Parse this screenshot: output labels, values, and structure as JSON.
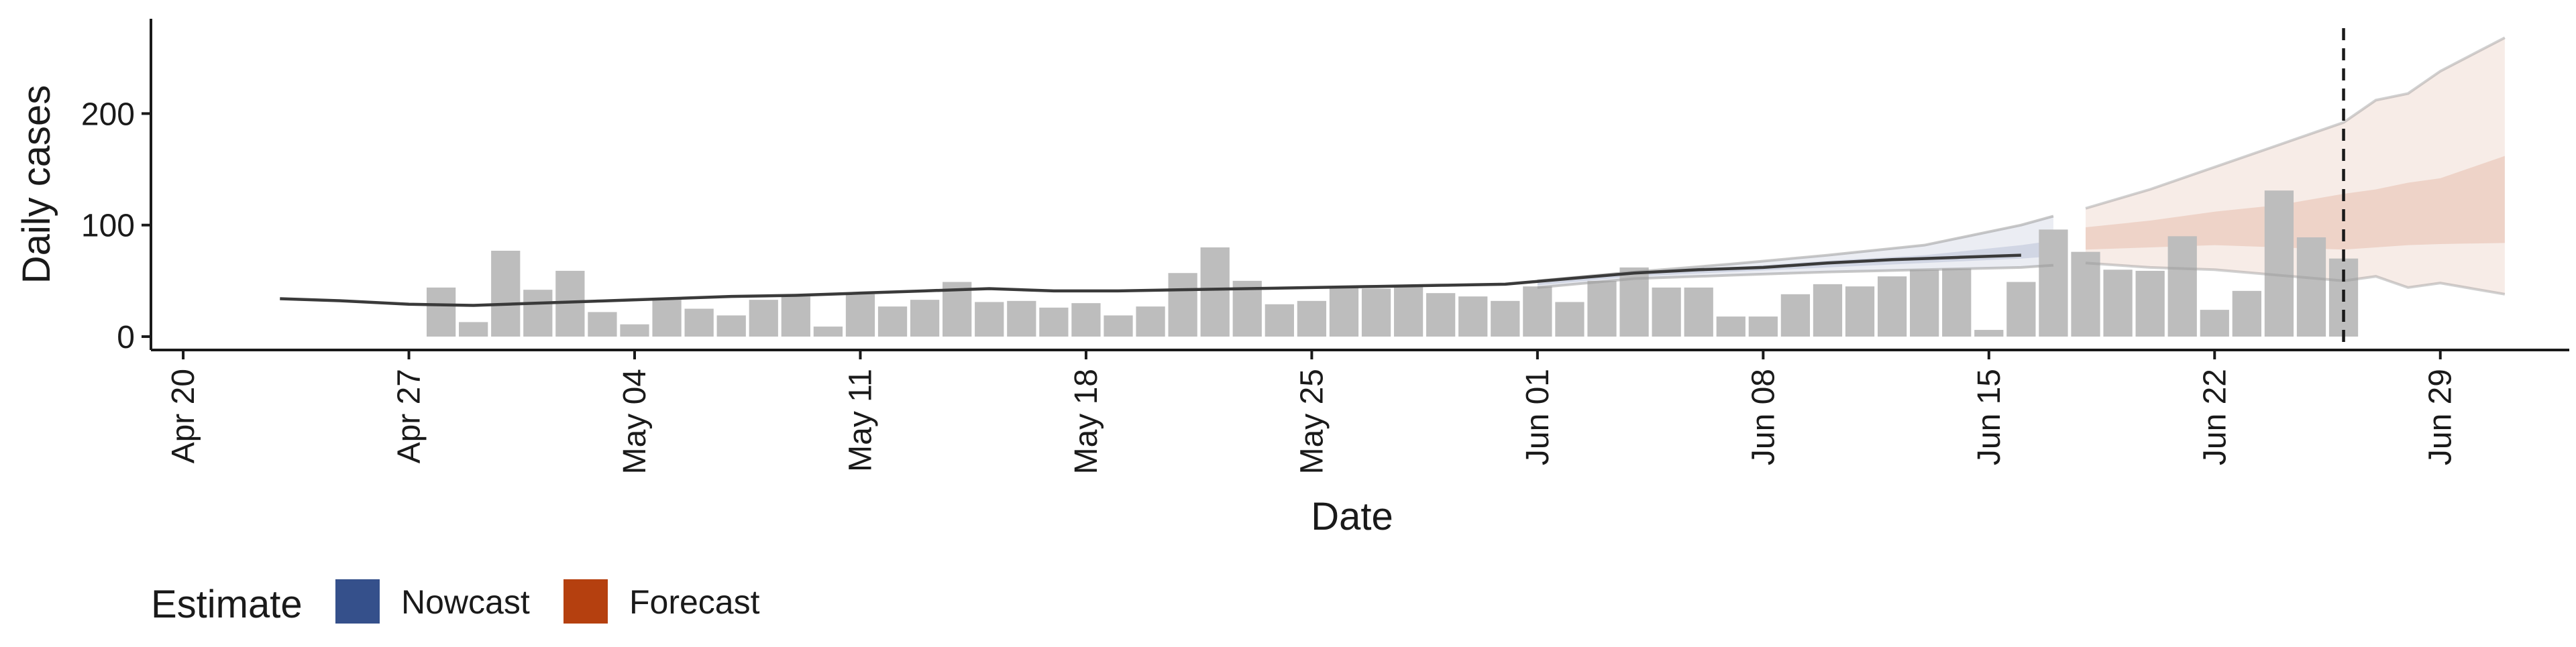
{
  "chart_data": {
    "type": "bar",
    "xlabel": "Date",
    "ylabel": "Daily cases",
    "x_range": [
      "2020-04-19",
      "2020-07-03"
    ],
    "ylim": [
      -12,
      285
    ],
    "x_ticks": [
      {
        "date": "2020-04-20",
        "label": "Apr 20"
      },
      {
        "date": "2020-04-27",
        "label": "Apr 27"
      },
      {
        "date": "2020-05-04",
        "label": "May 04"
      },
      {
        "date": "2020-05-11",
        "label": "May 11"
      },
      {
        "date": "2020-05-18",
        "label": "May 18"
      },
      {
        "date": "2020-05-25",
        "label": "May 25"
      },
      {
        "date": "2020-06-01",
        "label": "Jun 01"
      },
      {
        "date": "2020-06-08",
        "label": "Jun 08"
      },
      {
        "date": "2020-06-15",
        "label": "Jun 15"
      },
      {
        "date": "2020-06-22",
        "label": "Jun 22"
      },
      {
        "date": "2020-06-29",
        "label": "Jun 29"
      }
    ],
    "y_ticks": [
      0,
      100,
      200
    ],
    "grid": false,
    "bars": {
      "color": "#bdbdbd",
      "dates": [
        "2020-04-28",
        "2020-04-29",
        "2020-04-30",
        "2020-05-01",
        "2020-05-02",
        "2020-05-03",
        "2020-05-04",
        "2020-05-05",
        "2020-05-06",
        "2020-05-07",
        "2020-05-08",
        "2020-05-09",
        "2020-05-10",
        "2020-05-11",
        "2020-05-12",
        "2020-05-13",
        "2020-05-14",
        "2020-05-15",
        "2020-05-16",
        "2020-05-17",
        "2020-05-18",
        "2020-05-19",
        "2020-05-20",
        "2020-05-21",
        "2020-05-22",
        "2020-05-23",
        "2020-05-24",
        "2020-05-25",
        "2020-05-26",
        "2020-05-27",
        "2020-05-28",
        "2020-05-29",
        "2020-05-30",
        "2020-05-31",
        "2020-06-01",
        "2020-06-02",
        "2020-06-03",
        "2020-06-04",
        "2020-06-05",
        "2020-06-06",
        "2020-06-07",
        "2020-06-08",
        "2020-06-09",
        "2020-06-10",
        "2020-06-11",
        "2020-06-12",
        "2020-06-13",
        "2020-06-14",
        "2020-06-15",
        "2020-06-16",
        "2020-06-17",
        "2020-06-18",
        "2020-06-19",
        "2020-06-20",
        "2020-06-21",
        "2020-06-22",
        "2020-06-23",
        "2020-06-24",
        "2020-06-25",
        "2020-06-26"
      ],
      "values": [
        44,
        13,
        77,
        42,
        59,
        22,
        11,
        33,
        25,
        19,
        33,
        36,
        9,
        38,
        27,
        33,
        49,
        31,
        32,
        26,
        30,
        19,
        27,
        57,
        80,
        50,
        29,
        32,
        44,
        43,
        45,
        39,
        36,
        32,
        45,
        31,
        50,
        62,
        44,
        44,
        18,
        18,
        38,
        47,
        45,
        54,
        60,
        61,
        6,
        49,
        96,
        76,
        60,
        59,
        90,
        24,
        41,
        131,
        89,
        70
      ]
    },
    "estimate_line": {
      "color": "#3a3a3a",
      "dates": [
        "2020-04-23",
        "2020-04-25",
        "2020-04-27",
        "2020-04-29",
        "2020-05-01",
        "2020-05-03",
        "2020-05-05",
        "2020-05-07",
        "2020-05-09",
        "2020-05-11",
        "2020-05-13",
        "2020-05-15",
        "2020-05-17",
        "2020-05-19",
        "2020-05-21",
        "2020-05-23",
        "2020-05-25",
        "2020-05-27",
        "2020-05-29",
        "2020-05-31",
        "2020-06-02",
        "2020-06-04",
        "2020-06-06",
        "2020-06-08",
        "2020-06-10",
        "2020-06-12",
        "2020-06-14",
        "2020-06-16"
      ],
      "values": [
        34,
        32,
        29,
        28,
        30,
        32,
        34,
        36,
        37,
        39,
        41,
        43,
        41,
        41,
        42,
        43,
        44,
        45,
        46,
        47,
        52,
        57,
        60,
        62,
        66,
        69,
        71,
        73
      ]
    },
    "nowcast_band": {
      "color": "#3c4f8c",
      "dates": [
        "2020-06-01",
        "2020-06-04",
        "2020-06-07",
        "2020-06-10",
        "2020-06-13",
        "2020-06-16",
        "2020-06-17"
      ],
      "outer_upper": [
        50,
        58,
        65,
        73,
        82,
        100,
        108
      ],
      "outer_lower": [
        44,
        52,
        55,
        58,
        60,
        62,
        64
      ],
      "inner_upper": [
        48,
        56,
        62,
        68,
        73,
        82,
        86
      ],
      "inner_lower": [
        46,
        54,
        58,
        62,
        66,
        70,
        72
      ]
    },
    "forecast_band": {
      "color": "#b5410f",
      "dates": [
        "2020-06-18",
        "2020-06-20",
        "2020-06-22",
        "2020-06-24",
        "2020-06-26",
        "2020-06-27",
        "2020-06-28",
        "2020-06-29",
        "2020-07-01"
      ],
      "outer_upper": [
        115,
        132,
        152,
        172,
        192,
        212,
        218,
        238,
        268
      ],
      "outer_lower": [
        66,
        62,
        60,
        55,
        50,
        54,
        44,
        48,
        38
      ],
      "inner_upper": [
        98,
        104,
        112,
        118,
        128,
        132,
        138,
        142,
        162
      ],
      "inner_lower": [
        78,
        80,
        82,
        80,
        78,
        80,
        82,
        83,
        84
      ]
    },
    "vline_date": "2020-06-26",
    "legend": {
      "title": "Estimate",
      "position": "bottom",
      "items": [
        {
          "label": "Nowcast",
          "color": "#35508b"
        },
        {
          "label": "Forecast",
          "color": "#b5400f"
        }
      ]
    }
  }
}
